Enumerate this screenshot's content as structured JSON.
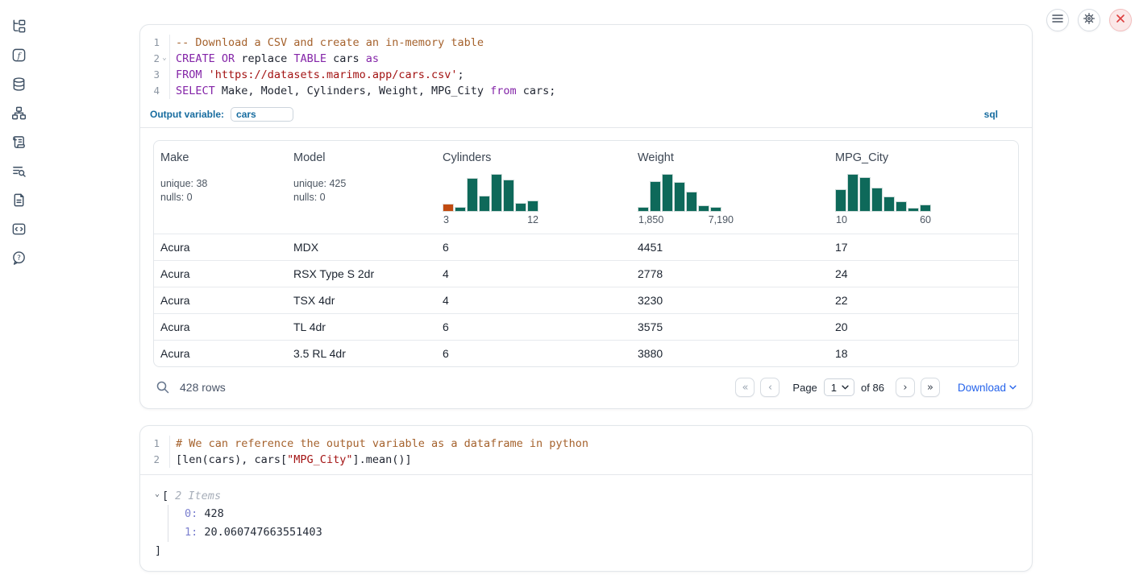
{
  "colors": {
    "histogram_green": "#0e695a",
    "histogram_orange": "#c14a10",
    "keyword_purple": "#8425a8",
    "comment_brown": "#a5622d",
    "string_red": "#a31313",
    "accent_blue": "#176c9f",
    "link_blue": "#2563eb",
    "close_red": "#dd3d3d"
  },
  "sidebar": {
    "icons": [
      "file-tree-icon",
      "function-icon",
      "database-icon",
      "dependency-graph-icon",
      "scroll-icon",
      "logs-search-icon",
      "document-icon",
      "snippets-icon",
      "help-icon"
    ]
  },
  "topbar": {
    "icons": [
      "menu-icon",
      "settings-gear-icon",
      "shutdown-close-icon"
    ]
  },
  "cell1": {
    "code": {
      "lines": [
        {
          "num": "1",
          "fold": false,
          "tokens": [
            {
              "c": "comment",
              "v": "-- Download a CSV and create an in-memory table"
            }
          ]
        },
        {
          "num": "2",
          "fold": true,
          "tokens": [
            {
              "c": "kw",
              "v": "CREATE"
            },
            {
              "c": "plain",
              "v": " "
            },
            {
              "c": "kw",
              "v": "OR"
            },
            {
              "c": "plain",
              "v": " replace "
            },
            {
              "c": "kw",
              "v": "TABLE"
            },
            {
              "c": "plain",
              "v": " cars "
            },
            {
              "c": "kw",
              "v": "as"
            }
          ]
        },
        {
          "num": "3",
          "fold": false,
          "tokens": [
            {
              "c": "kw",
              "v": "FROM"
            },
            {
              "c": "plain",
              "v": " "
            },
            {
              "c": "str",
              "v": "'https://datasets.marimo.app/cars.csv'"
            },
            {
              "c": "plain",
              "v": ";"
            }
          ]
        },
        {
          "num": "4",
          "fold": false,
          "tokens": [
            {
              "c": "kw",
              "v": "SELECT"
            },
            {
              "c": "plain",
              "v": " Make, Model, Cylinders, Weight, MPG_City "
            },
            {
              "c": "kw",
              "v": "from"
            },
            {
              "c": "plain",
              "v": " cars;"
            }
          ]
        }
      ]
    },
    "output_variable": {
      "label": "Output variable:",
      "value": "cars",
      "language": "sql"
    },
    "table": {
      "columns": [
        {
          "name": "Make",
          "stats": [
            "unique: 38",
            "nulls: 0"
          ]
        },
        {
          "name": "Model",
          "stats": [
            "unique: 425",
            "nulls: 0"
          ]
        },
        {
          "name": "Cylinders",
          "histogram": {
            "min_label": "3",
            "max_label": "12",
            "bars": [
              21,
              13,
              88,
              42,
              98,
              83,
              23,
              29
            ],
            "bar_colors": [
              "orange",
              "green",
              "green",
              "green",
              "green",
              "green",
              "green",
              "green"
            ]
          }
        },
        {
          "name": "Weight",
          "histogram": {
            "min_label": "1,850",
            "max_label": "7,190",
            "bars": [
              13,
              79,
              98,
              77,
              52,
              17,
              13
            ],
            "bar_colors": [
              "green",
              "green",
              "green",
              "green",
              "green",
              "green",
              "green"
            ]
          }
        },
        {
          "name": "MPG_City",
          "histogram": {
            "min_label": "10",
            "max_label": "60",
            "bars": [
              58,
              98,
              90,
              63,
              40,
              27,
              10,
              19
            ],
            "bar_colors": [
              "green",
              "green",
              "green",
              "green",
              "green",
              "green",
              "green",
              "green"
            ]
          }
        }
      ],
      "rows": [
        [
          "Acura",
          "MDX",
          "6",
          "4451",
          "17"
        ],
        [
          "Acura",
          "RSX Type S 2dr",
          "4",
          "2778",
          "24"
        ],
        [
          "Acura",
          "TSX 4dr",
          "4",
          "3230",
          "22"
        ],
        [
          "Acura",
          "TL 4dr",
          "6",
          "3575",
          "20"
        ],
        [
          "Acura",
          "3.5 RL 4dr",
          "6",
          "3880",
          "18"
        ]
      ]
    },
    "footer": {
      "row_count": "428 rows",
      "pager": {
        "first": "«",
        "prev": "‹",
        "next": "›",
        "last": "»"
      },
      "page_label": "Page",
      "page_value": "1",
      "of_label": "of 86",
      "download_label": "Download"
    }
  },
  "cell2": {
    "code": {
      "lines": [
        {
          "num": "1",
          "fold": false,
          "tokens": [
            {
              "c": "comment",
              "v": "# We can reference the output variable as a dataframe in python"
            }
          ]
        },
        {
          "num": "2",
          "fold": false,
          "tokens": [
            {
              "c": "plain",
              "v": "[len(cars), cars["
            },
            {
              "c": "str",
              "v": "\"MPG_City\""
            },
            {
              "c": "plain",
              "v": "].mean()]"
            }
          ]
        }
      ]
    },
    "output": {
      "bracket_open": "[",
      "items_label": "2 Items",
      "items": [
        {
          "key": "0:",
          "value": "428"
        },
        {
          "key": "1:",
          "value": "20.060747663551403"
        }
      ],
      "bracket_close": "]"
    }
  }
}
